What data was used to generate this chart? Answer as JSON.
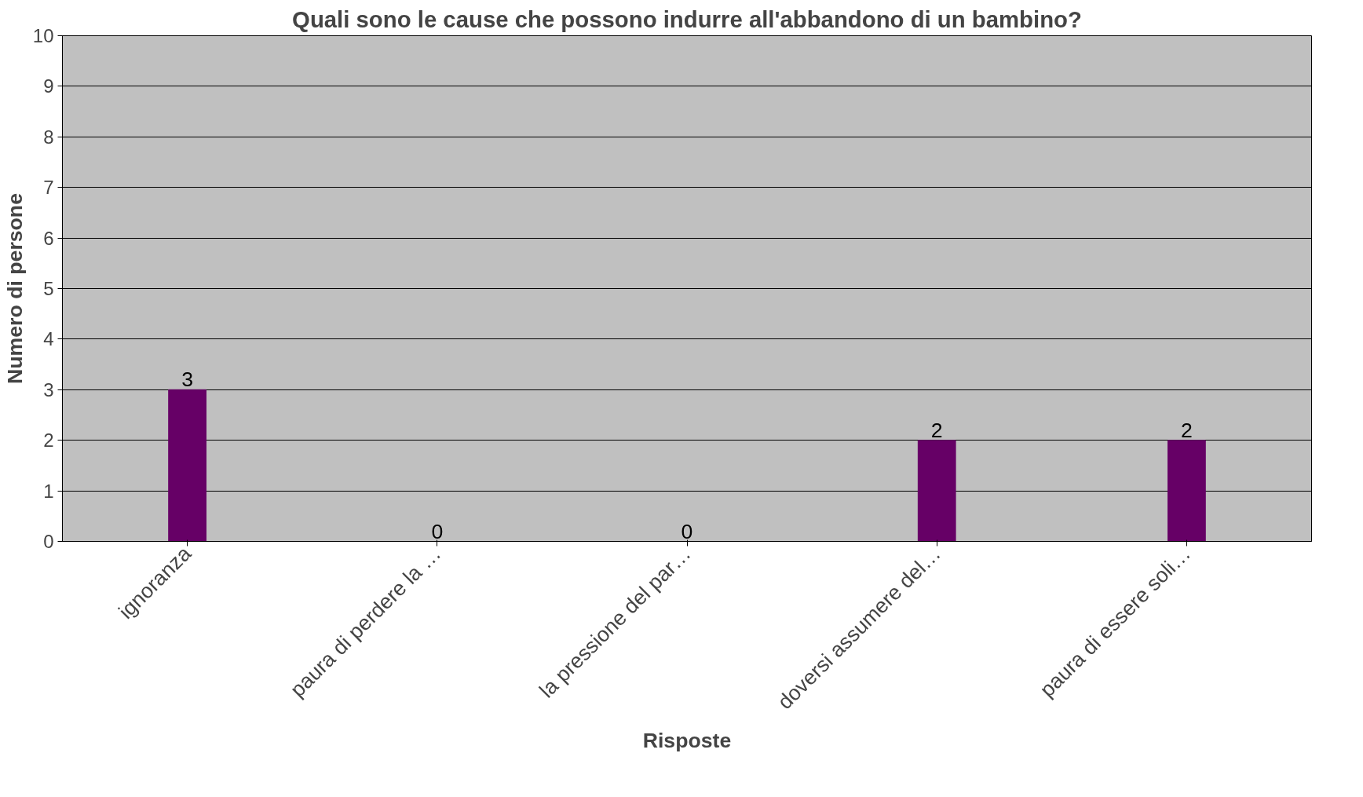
{
  "chart_data": {
    "type": "bar",
    "title": "Quali sono le cause che possono indurre all'abbandono di un bambino?",
    "xlabel": "Risposte",
    "ylabel": "Numero di persone",
    "categories": [
      "ignoranza",
      "paura di perdere la …",
      "la pressione del par…",
      "doversi assumere del…",
      "paura di essere soli…"
    ],
    "values": [
      3,
      0,
      0,
      2,
      2
    ],
    "color": "#660066",
    "ylim": [
      0,
      10
    ],
    "yticks": [
      0,
      1,
      2,
      3,
      4,
      5,
      6,
      7,
      8,
      9,
      10
    ],
    "grid": "y",
    "data_labels": true
  }
}
